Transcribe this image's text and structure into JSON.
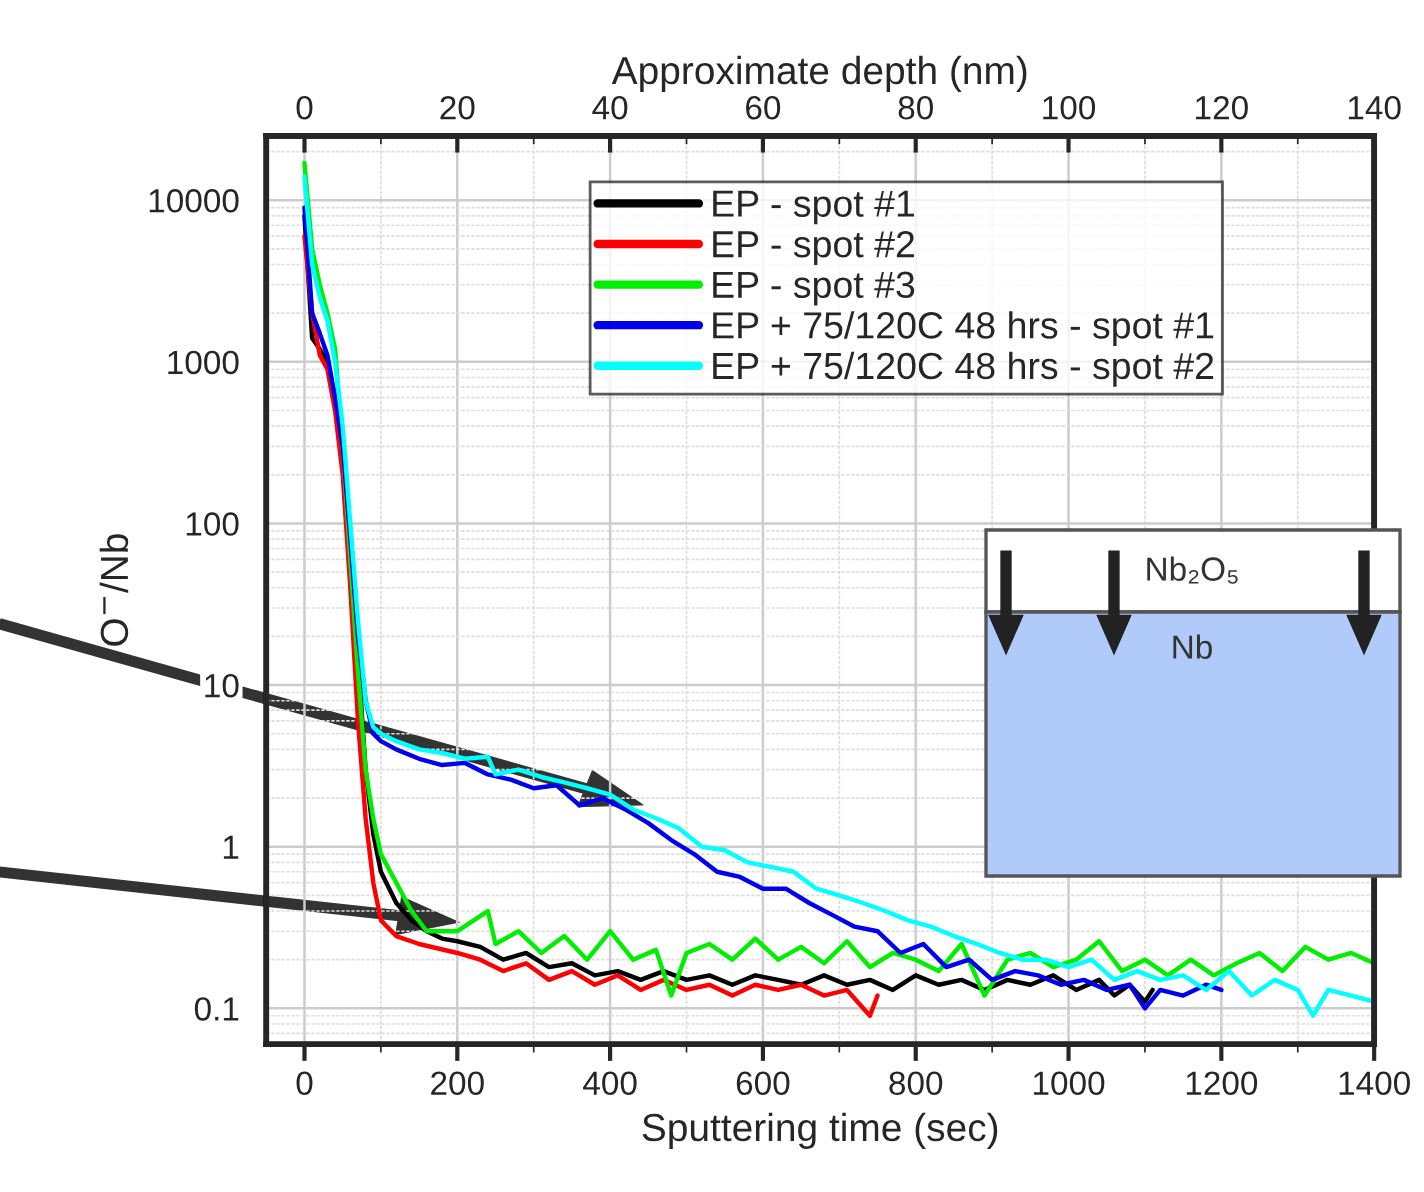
{
  "chart_data": {
    "type": "line",
    "xlabel": "Sputtering time (sec)",
    "ylabel": "O$^{−}$/Nb",
    "x2label": "Approximate depth (nm)",
    "log": "y",
    "grid": true,
    "legend": "top right",
    "line_style": "solid",
    "marker": "none",
    "xlim": [
      -50,
      1400
    ],
    "xticks": [
      0,
      200,
      400,
      600,
      800,
      1000,
      1200,
      1400
    ],
    "x2lim": [
      -5,
      140
    ],
    "x2ticks": [
      0,
      20,
      40,
      60,
      80,
      100,
      120,
      140
    ],
    "ylim": [
      0.06,
      25000
    ],
    "yticks": [
      0.1,
      1,
      10,
      100,
      1000,
      10000
    ],
    "annotations": [
      "Nb₂O₅",
      "Nb"
    ],
    "series": [
      {
        "name": "EP - spot #1",
        "color": "#000000",
        "x": [
          0,
          10,
          20,
          30,
          40,
          50,
          60,
          70,
          80,
          90,
          100,
          120,
          140,
          160,
          180,
          200,
          230,
          260,
          290,
          320,
          350,
          380,
          410,
          440,
          470,
          500,
          530,
          560,
          590,
          620,
          650,
          680,
          710,
          740,
          770,
          800,
          830,
          860,
          890,
          920,
          950,
          980,
          1010,
          1040,
          1060,
          1080,
          1100,
          1110
        ],
        "values": [
          8000,
          1400,
          1200,
          1000,
          600,
          300,
          80,
          15,
          3,
          1.2,
          0.7,
          0.45,
          0.35,
          0.3,
          0.27,
          0.26,
          0.24,
          0.2,
          0.22,
          0.18,
          0.19,
          0.16,
          0.17,
          0.15,
          0.17,
          0.15,
          0.16,
          0.14,
          0.16,
          0.15,
          0.14,
          0.16,
          0.14,
          0.15,
          0.13,
          0.16,
          0.14,
          0.15,
          0.13,
          0.15,
          0.14,
          0.16,
          0.13,
          0.15,
          0.12,
          0.14,
          0.11,
          0.13
        ]
      },
      {
        "name": "EP - spot #2",
        "color": "#ff0000",
        "x": [
          0,
          10,
          20,
          30,
          40,
          50,
          60,
          70,
          80,
          90,
          100,
          120,
          150,
          200,
          230,
          260,
          290,
          320,
          350,
          380,
          410,
          440,
          470,
          500,
          530,
          560,
          590,
          620,
          650,
          680,
          710,
          740,
          750
        ],
        "values": [
          6000,
          2000,
          1100,
          900,
          500,
          200,
          40,
          6,
          1.5,
          0.6,
          0.35,
          0.28,
          0.25,
          0.22,
          0.2,
          0.17,
          0.19,
          0.15,
          0.17,
          0.14,
          0.16,
          0.13,
          0.15,
          0.13,
          0.14,
          0.12,
          0.14,
          0.13,
          0.14,
          0.12,
          0.13,
          0.09,
          0.12
        ]
      },
      {
        "name": "EP - spot #3",
        "color": "#00ee00",
        "x": [
          0,
          10,
          20,
          30,
          40,
          50,
          60,
          70,
          80,
          90,
          100,
          120,
          140,
          160,
          200,
          240,
          250,
          280,
          310,
          340,
          370,
          400,
          430,
          460,
          480,
          500,
          530,
          560,
          590,
          620,
          650,
          680,
          710,
          740,
          770,
          800,
          830,
          860,
          890,
          920,
          950,
          980,
          1010,
          1040,
          1070,
          1100,
          1130,
          1160,
          1190,
          1220,
          1250,
          1280,
          1310,
          1340,
          1370,
          1400
        ],
        "values": [
          17000,
          5000,
          3000,
          2000,
          1200,
          300,
          60,
          12,
          3,
          1.5,
          0.9,
          0.6,
          0.4,
          0.3,
          0.3,
          0.4,
          0.25,
          0.3,
          0.22,
          0.28,
          0.2,
          0.3,
          0.2,
          0.23,
          0.12,
          0.22,
          0.25,
          0.2,
          0.27,
          0.2,
          0.24,
          0.19,
          0.26,
          0.18,
          0.22,
          0.2,
          0.17,
          0.25,
          0.12,
          0.2,
          0.22,
          0.18,
          0.2,
          0.26,
          0.17,
          0.2,
          0.16,
          0.2,
          0.16,
          0.19,
          0.22,
          0.17,
          0.24,
          0.2,
          0.22,
          0.19
        ]
      },
      {
        "name": "EP + 75/120C 48 hrs - spot #1",
        "color": "#0000ee",
        "x": [
          0,
          10,
          20,
          30,
          40,
          50,
          60,
          70,
          80,
          90,
          100,
          120,
          150,
          180,
          210,
          240,
          270,
          300,
          330,
          360,
          390,
          420,
          450,
          480,
          510,
          540,
          570,
          600,
          630,
          660,
          690,
          720,
          750,
          780,
          810,
          840,
          870,
          900,
          930,
          960,
          990,
          1020,
          1050,
          1080,
          1100,
          1120,
          1150,
          1180,
          1200
        ],
        "values": [
          9000,
          2000,
          1500,
          1100,
          600,
          300,
          80,
          20,
          8,
          5,
          4.5,
          4,
          3.5,
          3.2,
          3.3,
          2.8,
          2.6,
          2.3,
          2.4,
          1.8,
          2,
          1.7,
          1.4,
          1.1,
          0.9,
          0.7,
          0.65,
          0.55,
          0.55,
          0.45,
          0.38,
          0.32,
          0.3,
          0.22,
          0.25,
          0.18,
          0.2,
          0.15,
          0.17,
          0.16,
          0.14,
          0.15,
          0.13,
          0.14,
          0.1,
          0.13,
          0.12,
          0.14,
          0.13
        ]
      },
      {
        "name": "EP + 75/120C 48 hrs - spot #2",
        "color": "#00ffff",
        "x": [
          0,
          10,
          20,
          30,
          40,
          50,
          60,
          70,
          80,
          90,
          100,
          120,
          150,
          180,
          210,
          240,
          250,
          280,
          310,
          340,
          370,
          400,
          430,
          460,
          490,
          520,
          550,
          580,
          610,
          640,
          670,
          700,
          730,
          760,
          790,
          820,
          850,
          880,
          910,
          940,
          970,
          1000,
          1030,
          1060,
          1090,
          1120,
          1150,
          1180,
          1210,
          1240,
          1270,
          1300,
          1320,
          1340,
          1370,
          1400
        ],
        "values": [
          14000,
          4000,
          2500,
          1800,
          1000,
          400,
          100,
          25,
          8,
          5.5,
          5,
          4.5,
          4,
          3.8,
          3.5,
          3.6,
          2.8,
          3,
          2.7,
          2.5,
          2.3,
          2.1,
          1.7,
          1.5,
          1.3,
          1,
          0.95,
          0.8,
          0.75,
          0.7,
          0.55,
          0.5,
          0.45,
          0.4,
          0.35,
          0.32,
          0.28,
          0.25,
          0.22,
          0.2,
          0.2,
          0.18,
          0.2,
          0.15,
          0.17,
          0.15,
          0.16,
          0.13,
          0.17,
          0.12,
          0.15,
          0.13,
          0.09,
          0.13,
          0.12,
          0.11
        ]
      }
    ]
  }
}
